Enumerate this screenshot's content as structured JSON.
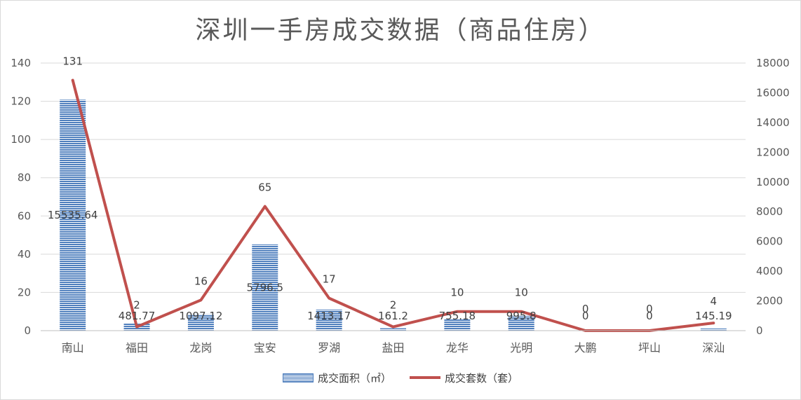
{
  "title": "深圳一手房成交数据（商品住房）",
  "chart_data": {
    "type": "bar",
    "title": "深圳一手房成交数据（商品住房）",
    "categories": [
      "南山",
      "福田",
      "龙岗",
      "宝安",
      "罗湖",
      "盐田",
      "龙华",
      "光明",
      "大鹏",
      "坪山",
      "深汕"
    ],
    "series": [
      {
        "name": "成交面积（㎡）",
        "type": "bar",
        "axis": "right",
        "values": [
          15535.64,
          481.77,
          1097.12,
          5796.5,
          1413.17,
          161.2,
          755.18,
          995.8,
          0,
          0,
          145.19
        ],
        "labels": [
          "15535.64",
          "481.77",
          "1097.12",
          "5796.5",
          "1413.17",
          "161.2",
          "755.18",
          "995.8",
          "0",
          "0",
          "145.19"
        ],
        "color": "#4f7fbd"
      },
      {
        "name": "成交套数（套）",
        "type": "line",
        "axis": "left",
        "values": [
          131,
          2,
          16,
          65,
          17,
          2,
          10,
          10,
          0,
          0,
          4
        ],
        "labels": [
          "131",
          "2",
          "16",
          "65",
          "17",
          "2",
          "10",
          "10",
          "0",
          "0",
          "4"
        ],
        "color": "#c0504d"
      }
    ],
    "y_left": {
      "ylim": [
        0,
        140
      ],
      "ticks": [
        "0",
        "20",
        "40",
        "60",
        "80",
        "100",
        "120",
        "140"
      ]
    },
    "y_right": {
      "ylim": [
        0,
        18000
      ],
      "ticks": [
        "0",
        "2000",
        "4000",
        "6000",
        "8000",
        "10000",
        "12000",
        "14000",
        "16000",
        "18000"
      ]
    },
    "grid": true,
    "legend_position": "bottom"
  }
}
